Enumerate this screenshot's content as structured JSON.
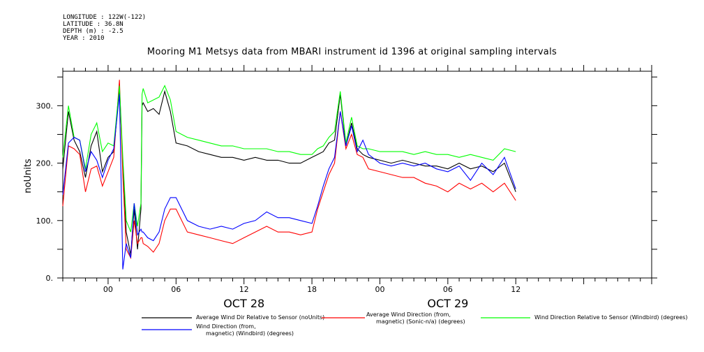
{
  "header": {
    "longitude": "LONGITUDE : 122W(-122)",
    "latitude": "LATITUDE : 36.8N",
    "depth": "DEPTH (m) : -2.5",
    "year": "YEAR : 2010"
  },
  "chart_data": {
    "type": "line",
    "title": "Mooring M1 Metsys data from MBARI instrument id 1396 at original sampling intervals",
    "ylabel": "noUnits",
    "xlabel": "",
    "x_range_hours": [
      -4,
      48
    ],
    "ylim": [
      0,
      360
    ],
    "x_ticks": [
      {
        "hour": 0,
        "label": "00"
      },
      {
        "hour": 6,
        "label": "06"
      },
      {
        "hour": 12,
        "label": "12"
      },
      {
        "hour": 18,
        "label": "18"
      },
      {
        "hour": 24,
        "label": "00"
      },
      {
        "hour": 30,
        "label": "06"
      },
      {
        "hour": 36,
        "label": "12"
      }
    ],
    "date_labels": [
      {
        "hour": 12,
        "label": "OCT 28"
      },
      {
        "hour": 30,
        "label": "OCT 29"
      }
    ],
    "y_ticks": [
      {
        "value": 0,
        "label": "0."
      },
      {
        "value": 100,
        "label": "100."
      },
      {
        "value": 200,
        "label": "200."
      },
      {
        "value": 300,
        "label": "300."
      }
    ],
    "series": [
      {
        "name": "Average Wind Dir Relative to Sensor (noUnits)",
        "color": "#000000",
        "x": [
          -4,
          -3.5,
          -3,
          -2.5,
          -2,
          -1.5,
          -1,
          -0.5,
          0,
          0.5,
          1,
          1.3,
          1.6,
          2,
          2.3,
          2.6,
          2.9,
          3,
          3.1,
          3.5,
          4,
          4.5,
          5,
          5.5,
          6,
          7,
          8,
          9,
          10,
          11,
          12,
          13,
          14,
          15,
          16,
          17,
          18,
          18.5,
          19,
          19.5,
          20,
          20.5,
          21,
          21.5,
          22,
          22.5,
          23,
          24,
          25,
          26,
          27,
          28,
          29,
          30,
          31,
          32,
          33,
          34,
          35,
          36
        ],
        "y": [
          190,
          290,
          240,
          220,
          175,
          230,
          255,
          185,
          210,
          220,
          330,
          200,
          80,
          40,
          120,
          50,
          120,
          300,
          305,
          290,
          295,
          285,
          325,
          290,
          235,
          230,
          220,
          215,
          210,
          210,
          205,
          210,
          205,
          205,
          200,
          200,
          210,
          215,
          220,
          235,
          240,
          320,
          230,
          270,
          225,
          215,
          210,
          205,
          200,
          205,
          200,
          195,
          195,
          190,
          200,
          190,
          195,
          185,
          200,
          150
        ]
      },
      {
        "name": "Average Wind Direction (from, magnetic) (Sonic-n/a) (degrees)",
        "color": "#ff0000",
        "x": [
          -4,
          -3.5,
          -3,
          -2.5,
          -2,
          -1.5,
          -1,
          -0.5,
          0,
          0.5,
          1,
          1.3,
          1.6,
          2,
          2.3,
          2.6,
          2.9,
          3,
          3.1,
          3.5,
          4,
          4.5,
          5,
          5.5,
          6,
          7,
          8,
          9,
          10,
          11,
          12,
          13,
          14,
          15,
          16,
          17,
          18,
          18.5,
          19,
          19.5,
          20,
          20.5,
          21,
          21.5,
          22,
          22.5,
          23,
          24,
          25,
          26,
          27,
          28,
          29,
          30,
          31,
          32,
          33,
          34,
          35,
          36
        ],
        "y": [
          125,
          230,
          225,
          215,
          150,
          190,
          195,
          160,
          185,
          210,
          345,
          180,
          50,
          35,
          100,
          60,
          70,
          70,
          60,
          55,
          45,
          60,
          100,
          120,
          120,
          80,
          75,
          70,
          65,
          60,
          70,
          80,
          90,
          80,
          80,
          75,
          80,
          120,
          150,
          180,
          200,
          290,
          225,
          250,
          215,
          210,
          190,
          185,
          180,
          175,
          175,
          165,
          160,
          150,
          165,
          155,
          165,
          150,
          165,
          135
        ]
      },
      {
        "name": "Wind Direction Relative to Sensor (Windbird) (degrees)",
        "color": "#00ff00",
        "x": [
          -4,
          -3.5,
          -3,
          -2.5,
          -2,
          -1.5,
          -1,
          -0.5,
          0,
          0.5,
          1,
          1.3,
          1.6,
          2,
          2.3,
          2.6,
          2.9,
          3,
          3.1,
          3.5,
          4,
          4.5,
          5,
          5.5,
          6,
          7,
          8,
          9,
          10,
          11,
          12,
          13,
          14,
          15,
          16,
          17,
          18,
          18.5,
          19,
          19.5,
          20,
          20.5,
          21,
          21.5,
          22,
          22.5,
          23,
          24,
          25,
          26,
          27,
          28,
          29,
          30,
          31,
          32,
          33,
          34,
          35,
          36
        ],
        "y": [
          210,
          300,
          245,
          240,
          190,
          250,
          270,
          220,
          235,
          230,
          335,
          210,
          100,
          80,
          130,
          90,
          130,
          320,
          330,
          305,
          310,
          315,
          335,
          310,
          255,
          245,
          240,
          235,
          230,
          230,
          225,
          225,
          225,
          220,
          220,
          215,
          215,
          225,
          230,
          245,
          255,
          325,
          235,
          280,
          230,
          225,
          225,
          220,
          220,
          220,
          215,
          220,
          215,
          215,
          210,
          215,
          210,
          205,
          225,
          220
        ]
      },
      {
        "name": "Wind Direction (from, magnetic) (Windbird) (degrees)",
        "color": "#0000ff",
        "x": [
          -4,
          -3.5,
          -3,
          -2.5,
          -2,
          -1.5,
          -1,
          -0.5,
          0,
          0.5,
          1,
          1.3,
          1.6,
          2,
          2.3,
          2.6,
          2.9,
          3,
          3.1,
          3.5,
          4,
          4.5,
          5,
          5.5,
          6,
          7,
          8,
          9,
          10,
          11,
          12,
          13,
          14,
          15,
          16,
          17,
          18,
          18.5,
          19,
          19.5,
          20,
          20.5,
          21,
          21.5,
          22,
          22.5,
          23,
          24,
          25,
          26,
          27,
          28,
          29,
          30,
          31,
          32,
          33,
          34,
          35,
          36
        ],
        "y": [
          145,
          235,
          245,
          240,
          185,
          220,
          205,
          175,
          205,
          225,
          320,
          15,
          60,
          35,
          130,
          75,
          85,
          80,
          80,
          70,
          65,
          80,
          120,
          140,
          140,
          100,
          90,
          85,
          90,
          85,
          95,
          100,
          115,
          105,
          105,
          100,
          95,
          125,
          160,
          190,
          210,
          290,
          230,
          265,
          220,
          240,
          215,
          200,
          195,
          200,
          195,
          200,
          190,
          185,
          195,
          170,
          200,
          180,
          210,
          155
        ]
      }
    ],
    "legend": [
      {
        "label": "Average Wind Dir Relative to Sensor (noUnits)",
        "color": "#000000"
      },
      {
        "label": "Average Wind Direction (from,\nmagnetic) (Sonic-n/a) (degrees)",
        "color": "#ff0000"
      },
      {
        "label": "Wind Direction Relative to Sensor (Windbird) (degrees)",
        "color": "#00ff00"
      },
      {
        "label": "Wind Direction (from,\nmagnetic) (Windbird) (degrees)",
        "color": "#0000ff"
      }
    ],
    "legend_placement": "bottom",
    "grid": false
  }
}
